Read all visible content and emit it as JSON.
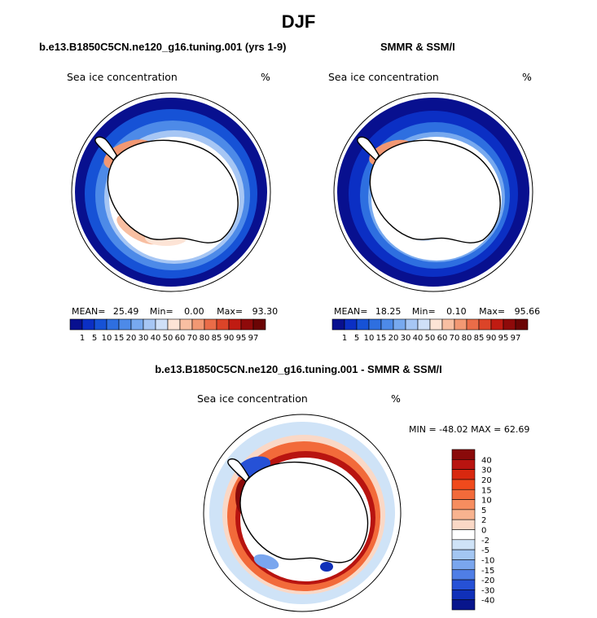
{
  "figure": {
    "season": "DJF"
  },
  "chart_data": [
    {
      "type": "heatmap",
      "title": "b.e13.B1850C5CN.ne120_g16.tuning.001 (yrs 1-9)",
      "left_label": "Sea ice concentration",
      "right_label": "%",
      "stats": {
        "mean_label": "MEAN=",
        "mean": "25.49",
        "min_label": "Min=",
        "min": "0.00",
        "max_label": "Max=",
        "max": "93.30"
      },
      "levels": [
        "1",
        "5",
        "10",
        "15",
        "20",
        "30",
        "40",
        "50",
        "60",
        "70",
        "80",
        "85",
        "90",
        "95",
        "97"
      ],
      "colors": [
        "#08108f",
        "#0b2fc4",
        "#1652d6",
        "#2e6fe0",
        "#4d8ae8",
        "#77a9ef",
        "#a6c6f4",
        "#cfe0f8",
        "#fde4d6",
        "#f8bfa2",
        "#f29873",
        "#ea6c48",
        "#dc4428",
        "#c01b12",
        "#8f0a0a",
        "#6b0505"
      ]
    },
    {
      "type": "heatmap",
      "title": "SMMR & SSM/I",
      "left_label": "Sea ice concentration",
      "right_label": "%",
      "stats": {
        "mean_label": "MEAN=",
        "mean": "18.25",
        "min_label": "Min=",
        "min": "0.10",
        "max_label": "Max=",
        "max": "95.66"
      },
      "levels": [
        "1",
        "5",
        "10",
        "15",
        "20",
        "30",
        "40",
        "50",
        "60",
        "70",
        "80",
        "85",
        "90",
        "95",
        "97"
      ],
      "colors": [
        "#08108f",
        "#0b2fc4",
        "#1652d6",
        "#2e6fe0",
        "#4d8ae8",
        "#77a9ef",
        "#a6c6f4",
        "#cfe0f8",
        "#fde4d6",
        "#f8bfa2",
        "#f29873",
        "#ea6c48",
        "#dc4428",
        "#c01b12",
        "#8f0a0a",
        "#6b0505"
      ]
    },
    {
      "type": "heatmap",
      "title": "b.e13.B1850C5CN.ne120_g16.tuning.001 - SMMR & SSM/I",
      "left_label": "Sea ice concentration",
      "right_label": "%",
      "stats_text": "MIN = -48.02 MAX =  62.69",
      "levels": [
        "40",
        "30",
        "20",
        "15",
        "10",
        "5",
        "2",
        "0",
        "-2",
        "-5",
        "-10",
        "-15",
        "-20",
        "-30",
        "-40"
      ],
      "colors": [
        "#8a0a0a",
        "#b81410",
        "#d8280f",
        "#f04a1c",
        "#f26a3a",
        "#f68d5f",
        "#f8b38f",
        "#fad8c6",
        "#ffffff",
        "#cfe3f7",
        "#a3c6f2",
        "#7aa6ee",
        "#4f7ee6",
        "#2651d6",
        "#1030b8",
        "#08158c"
      ]
    }
  ]
}
